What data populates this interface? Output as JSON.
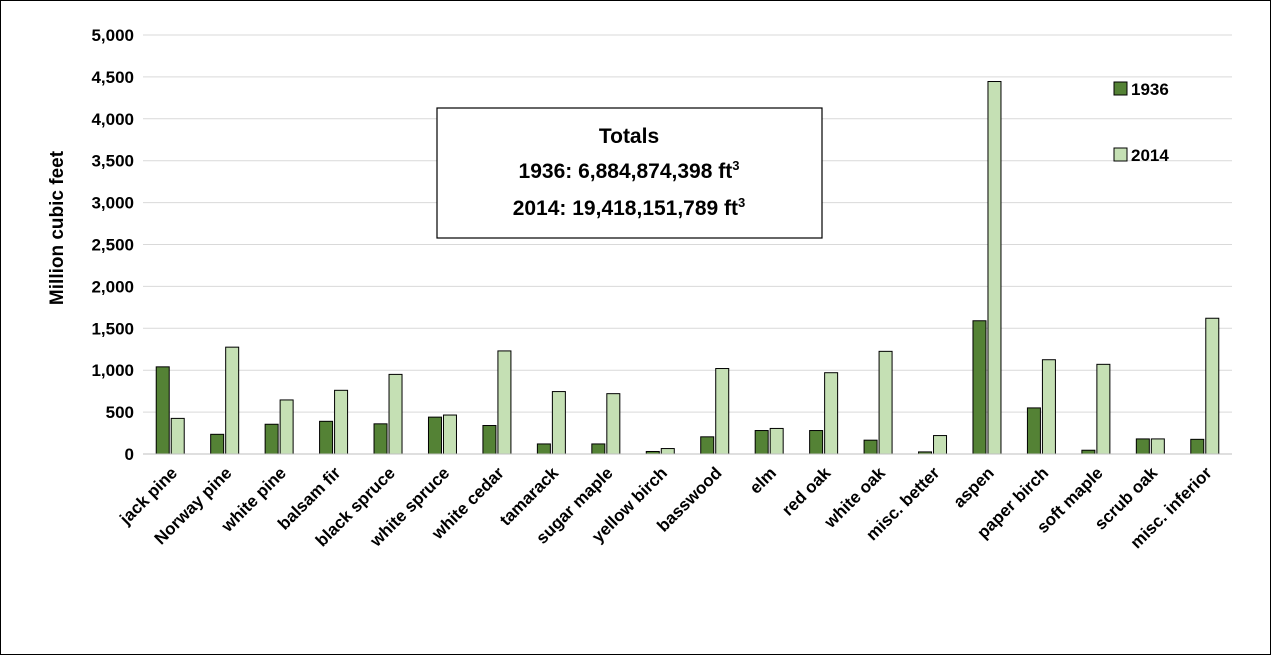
{
  "chart_data": {
    "type": "bar",
    "title": "",
    "xlabel": "",
    "ylabel": "Million cubic feet",
    "ylim": [
      0,
      5000
    ],
    "yticks": [
      0,
      500,
      1000,
      1500,
      2000,
      2500,
      3000,
      3500,
      4000,
      4500,
      5000
    ],
    "ytick_labels": [
      "0",
      "500",
      "1,000",
      "1,500",
      "2,000",
      "2,500",
      "3,000",
      "3,500",
      "4,000",
      "4,500",
      "5,000"
    ],
    "grid": true,
    "legend_position": "top-right",
    "categories": [
      "jack pine",
      "Norway pine",
      "white pine",
      "balsam fir",
      "black spruce",
      "white spruce",
      "white cedar",
      "tamarack",
      "sugar maple",
      "yellow birch",
      "basswood",
      "elm",
      "red oak",
      "white oak",
      "misc. better",
      "aspen",
      "paper birch",
      "soft maple",
      "scrub oak",
      "misc. inferior"
    ],
    "series": [
      {
        "name": "1936",
        "color": "#548235",
        "values": [
          1040,
          235,
          355,
          390,
          360,
          440,
          340,
          120,
          120,
          30,
          205,
          280,
          280,
          165,
          25,
          1590,
          550,
          45,
          180,
          175
        ]
      },
      {
        "name": "2014",
        "color": "#c5e0b4",
        "values": [
          425,
          1275,
          645,
          760,
          950,
          465,
          1230,
          745,
          720,
          65,
          1020,
          305,
          970,
          1225,
          220,
          4445,
          1125,
          1070,
          180,
          1620
        ]
      }
    ],
    "annotation": {
      "title": "Totals",
      "line1_prefix": "1936:  6,884,874,398 ft",
      "line2_prefix": "2014:  19,418,151,789 ft",
      "superscript": "3"
    }
  }
}
